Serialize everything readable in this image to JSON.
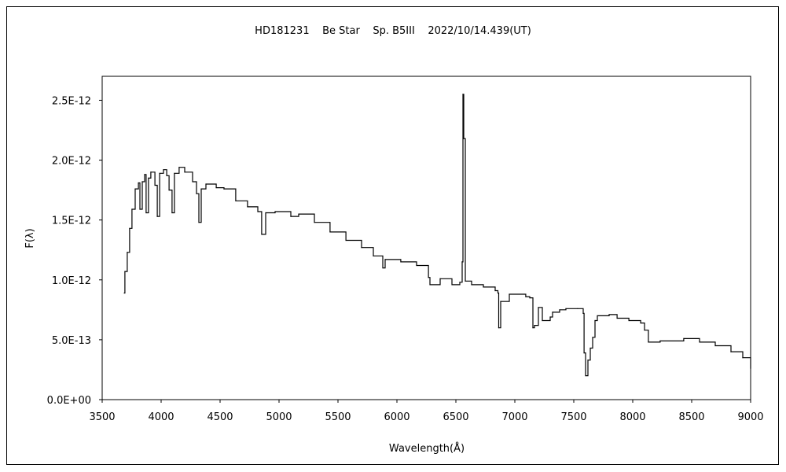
{
  "chart_data": {
    "type": "line",
    "title": "HD181231    Be Star    Sp. B5III    2022/10/14.439(UT)",
    "xlabel": "Wavelength(Å)",
    "ylabel": "F(λ)",
    "xlim": [
      3500,
      9000
    ],
    "ylim": [
      0,
      2.7e-12
    ],
    "x_ticks": [
      "3500",
      "4000",
      "4500",
      "5000",
      "5500",
      "6000",
      "6500",
      "7000",
      "7500",
      "8000",
      "8500",
      "9000"
    ],
    "y_ticks": [
      "0.0E+00",
      "5.0E-13",
      "1.0E-12",
      "1.5E-12",
      "2.0E-12",
      "2.5E-12"
    ],
    "grid": false,
    "legend": "none",
    "line_color": "#000000",
    "series": [
      {
        "points": [
          [
            3687,
            8.9e-13
          ],
          [
            3693,
            1.07e-12
          ],
          [
            3713,
            1.23e-12
          ],
          [
            3733,
            1.43e-12
          ],
          [
            3753,
            1.59e-12
          ],
          [
            3780,
            1.76e-12
          ],
          [
            3807,
            1.81e-12
          ],
          [
            3820,
            1.59e-12
          ],
          [
            3840,
            1.82e-12
          ],
          [
            3860,
            1.88e-12
          ],
          [
            3873,
            1.56e-12
          ],
          [
            3893,
            1.85e-12
          ],
          [
            3913,
            1.9e-12
          ],
          [
            3947,
            1.79e-12
          ],
          [
            3967,
            1.53e-12
          ],
          [
            3987,
            1.89e-12
          ],
          [
            4020,
            1.92e-12
          ],
          [
            4047,
            1.87e-12
          ],
          [
            4067,
            1.75e-12
          ],
          [
            4093,
            1.56e-12
          ],
          [
            4113,
            1.89e-12
          ],
          [
            4153,
            1.94e-12
          ],
          [
            4200,
            1.9e-12
          ],
          [
            4267,
            1.82e-12
          ],
          [
            4300,
            1.72e-12
          ],
          [
            4320,
            1.48e-12
          ],
          [
            4340,
            1.76e-12
          ],
          [
            4380,
            1.8e-12
          ],
          [
            4467,
            1.77e-12
          ],
          [
            4533,
            1.76e-12
          ],
          [
            4633,
            1.66e-12
          ],
          [
            4733,
            1.61e-12
          ],
          [
            4820,
            1.57e-12
          ],
          [
            4853,
            1.38e-12
          ],
          [
            4887,
            1.56e-12
          ],
          [
            4967,
            1.57e-12
          ],
          [
            5100,
            1.53e-12
          ],
          [
            5167,
            1.55e-12
          ],
          [
            5300,
            1.48e-12
          ],
          [
            5433,
            1.4e-12
          ],
          [
            5567,
            1.33e-12
          ],
          [
            5700,
            1.27e-12
          ],
          [
            5800,
            1.2e-12
          ],
          [
            5880,
            1.1e-12
          ],
          [
            5900,
            1.17e-12
          ],
          [
            6033,
            1.15e-12
          ],
          [
            6167,
            1.12e-12
          ],
          [
            6267,
            1.02e-12
          ],
          [
            6280,
            9.6e-13
          ],
          [
            6367,
            1.01e-12
          ],
          [
            6467,
            9.6e-13
          ],
          [
            6533,
            9.8e-13
          ],
          [
            6553,
            1.15e-12
          ],
          [
            6560,
            2.55e-12
          ],
          [
            6567,
            2.18e-12
          ],
          [
            6580,
            9.9e-13
          ],
          [
            6633,
            9.6e-13
          ],
          [
            6733,
            9.4e-13
          ],
          [
            6833,
            9.1e-13
          ],
          [
            6857,
            8.9e-13
          ],
          [
            6863,
            6e-13
          ],
          [
            6880,
            8.2e-13
          ],
          [
            6953,
            8.8e-13
          ],
          [
            7093,
            8.6e-13
          ],
          [
            7127,
            8.5e-13
          ],
          [
            7153,
            6e-13
          ],
          [
            7167,
            6.2e-13
          ],
          [
            7200,
            7.7e-13
          ],
          [
            7233,
            6.6e-13
          ],
          [
            7300,
            6.9e-13
          ],
          [
            7320,
            7.3e-13
          ],
          [
            7380,
            7.5e-13
          ],
          [
            7433,
            7.6e-13
          ],
          [
            7533,
            7.6e-13
          ],
          [
            7580,
            7.2e-13
          ],
          [
            7587,
            3.9e-13
          ],
          [
            7600,
            2e-13
          ],
          [
            7620,
            3.3e-13
          ],
          [
            7640,
            4.3e-13
          ],
          [
            7660,
            5.2e-13
          ],
          [
            7680,
            6.6e-13
          ],
          [
            7700,
            7e-13
          ],
          [
            7800,
            7.1e-13
          ],
          [
            7867,
            6.8e-13
          ],
          [
            7967,
            6.6e-13
          ],
          [
            8067,
            6.4e-13
          ],
          [
            8100,
            5.8e-13
          ],
          [
            8133,
            4.8e-13
          ],
          [
            8233,
            4.9e-13
          ],
          [
            8433,
            5.1e-13
          ],
          [
            8567,
            4.8e-13
          ],
          [
            8700,
            4.5e-13
          ],
          [
            8833,
            4e-13
          ],
          [
            8933,
            3.5e-13
          ],
          [
            9000,
            2.6e-13
          ]
        ]
      }
    ]
  }
}
